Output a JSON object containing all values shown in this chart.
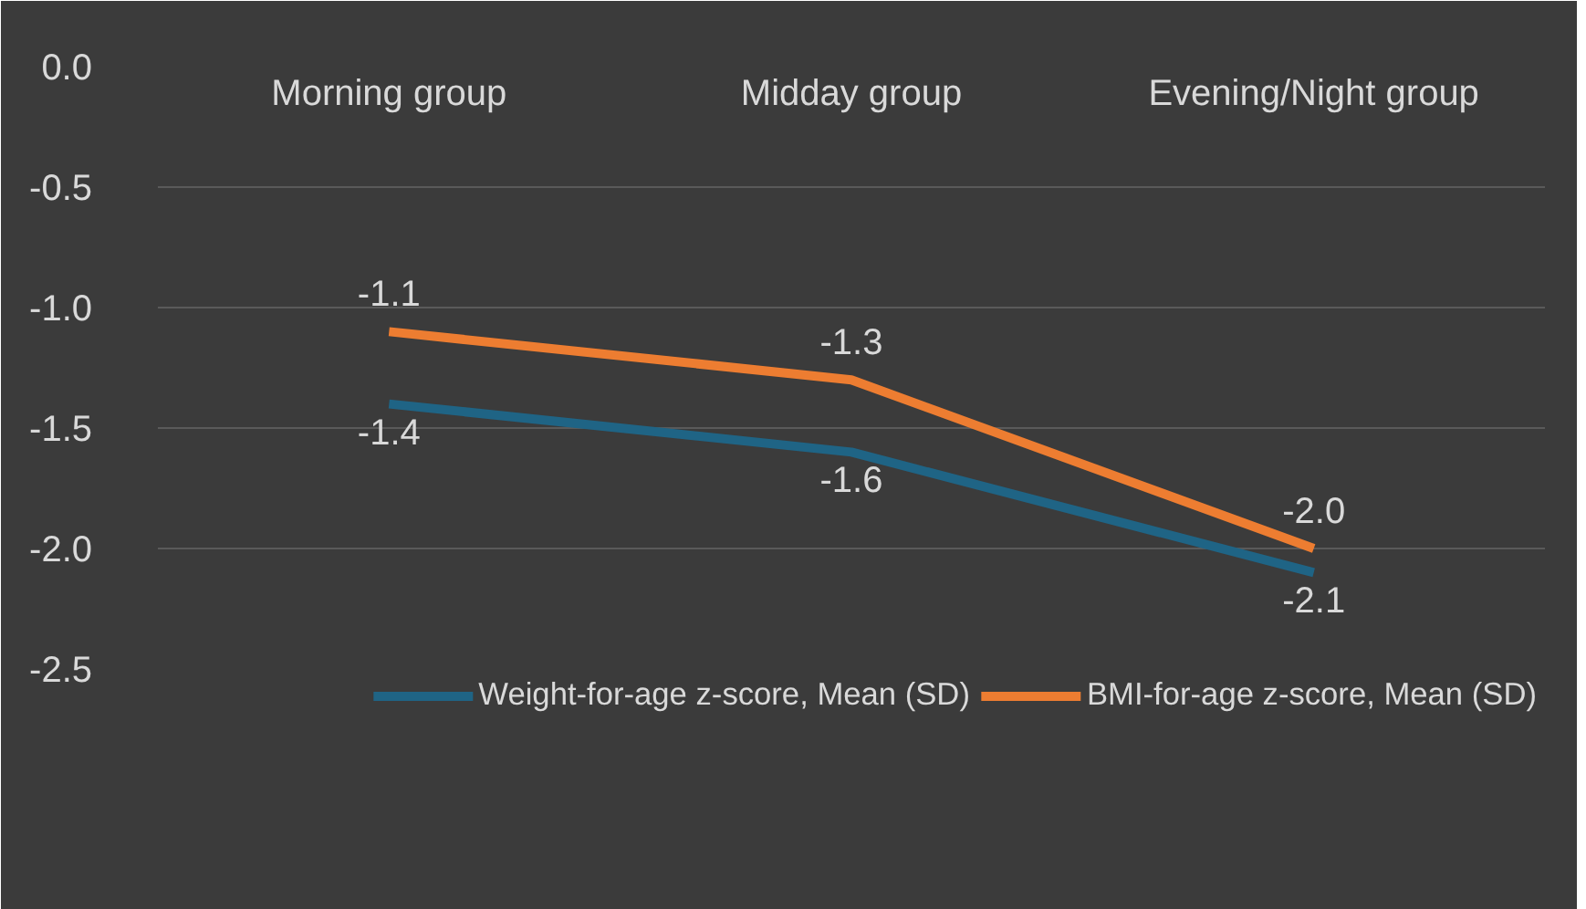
{
  "chart_data": {
    "type": "line",
    "categories": [
      "Morning group",
      "Midday group",
      "Evening/Night group"
    ],
    "series": [
      {
        "name": "Weight-for-age z-score, Mean (SD)",
        "color": "#1f6485",
        "values": [
          -1.4,
          -1.6,
          -2.1
        ],
        "value_labels": [
          "-1.4",
          "-1.6",
          "-2.1"
        ]
      },
      {
        "name": "BMI-for-age z-score, Mean (SD)",
        "color": "#ed7d31",
        "values": [
          -1.1,
          -1.3,
          -2.0
        ],
        "value_labels": [
          "-1.1",
          "-1.3",
          "-2.0"
        ]
      }
    ],
    "ylim": [
      -2.5,
      0.0
    ],
    "yticks": [
      {
        "value": 0.0,
        "label": "0.0"
      },
      {
        "value": -0.5,
        "label": "-0.5"
      },
      {
        "value": -1.0,
        "label": "-1.0"
      },
      {
        "value": -1.5,
        "label": "-1.5"
      },
      {
        "value": -2.0,
        "label": "-2.0"
      },
      {
        "value": -2.5,
        "label": "-2.5"
      }
    ],
    "grid": "y",
    "legend": "bottom",
    "marker": "none",
    "line_style": "solid"
  }
}
